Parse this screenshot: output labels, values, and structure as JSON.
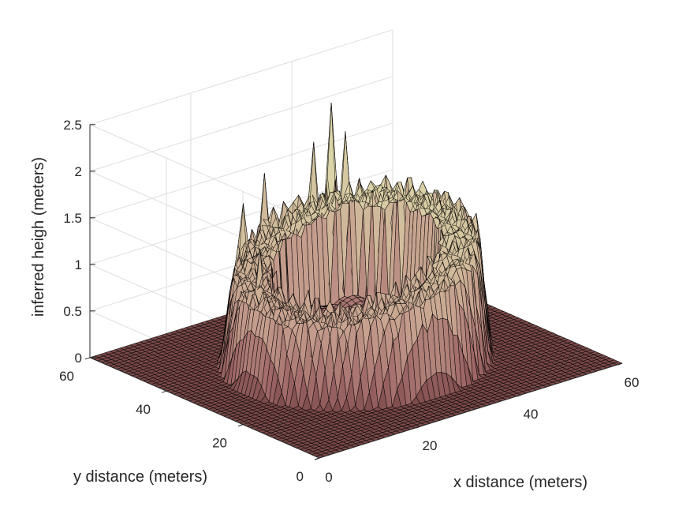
{
  "chart_data": {
    "type": "surface",
    "title": "",
    "xlabel": "x distance (meters)",
    "ylabel": "y distance (meters)",
    "zlabel": "inferred heigh (meters)",
    "xlim": [
      0,
      60
    ],
    "ylim": [
      0,
      60
    ],
    "zlim": [
      0,
      2.5
    ],
    "xticks": [
      0,
      20,
      40,
      60
    ],
    "yticks": [
      0,
      20,
      40,
      60
    ],
    "zticks": [
      0,
      0.5,
      1,
      1.5,
      2,
      2.5
    ],
    "xtick_labels": [
      "0",
      "20",
      "40",
      "60"
    ],
    "ytick_labels": [
      "0",
      "20",
      "40",
      "60"
    ],
    "ztick_labels": [
      "0",
      "0.5",
      "1",
      "1.5",
      "2",
      "2.5"
    ],
    "grid": true,
    "colormap": "pink",
    "edge_color": "#000000",
    "view": "3d-perspective",
    "grid_samples": 60,
    "structure": {
      "center": [
        30,
        30
      ],
      "wall_inner_radius": 13,
      "wall_outer_radius": 21,
      "wall_height_max": 1.5,
      "peak_locations": [
        {
          "x": 41,
          "y": 51,
          "z": 2.2
        },
        {
          "x": 40,
          "y": 46,
          "z": 2.0
        },
        {
          "x": 36,
          "y": 49,
          "z": 1.9
        },
        {
          "x": 27,
          "y": 50,
          "z": 1.7
        },
        {
          "x": 19,
          "y": 45,
          "z": 1.6
        },
        {
          "x": 14,
          "y": 34,
          "z": 1.4
        },
        {
          "x": 16,
          "y": 24,
          "z": 1.1
        },
        {
          "x": 30,
          "y": 12,
          "z": 0.9
        },
        {
          "x": 45,
          "y": 22,
          "z": 1.1
        },
        {
          "x": 48,
          "y": 36,
          "z": 1.2
        }
      ]
    }
  }
}
